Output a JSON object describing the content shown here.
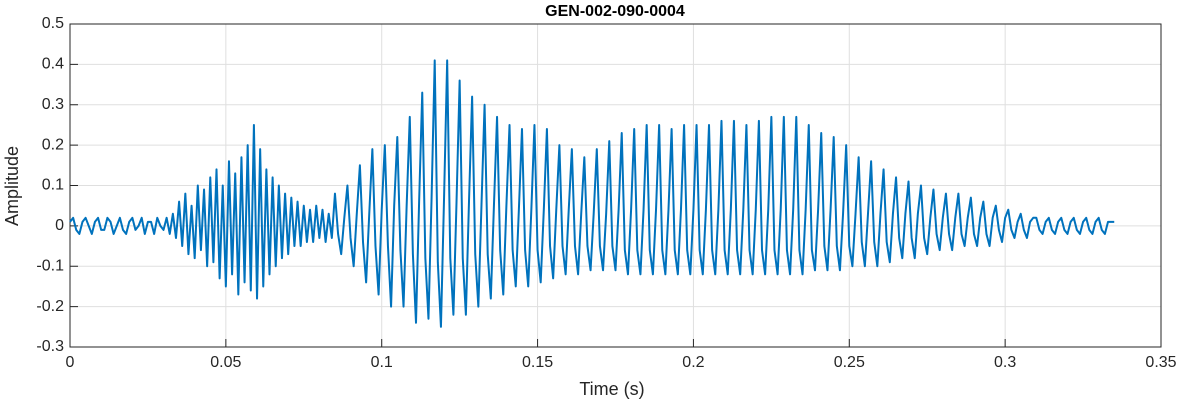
{
  "chart_data": {
    "type": "line",
    "title": "GEN-002-090-0004",
    "xlabel": "Time (s)",
    "ylabel": "Amplitude",
    "color": "#0072bd",
    "grid": true,
    "xlim": [
      0,
      0.35
    ],
    "ylim": [
      -0.3,
      0.5
    ],
    "xticks": [
      0,
      0.05,
      0.1,
      0.15,
      0.2,
      0.25,
      0.3,
      0.35
    ],
    "yticks": [
      -0.3,
      -0.2,
      -0.1,
      0,
      0.1,
      0.2,
      0.3,
      0.4,
      0.5
    ],
    "x": [
      0,
      0.001,
      0.002,
      0.003,
      0.004,
      0.005,
      0.006,
      0.007,
      0.008,
      0.009,
      0.01,
      0.011,
      0.012,
      0.013,
      0.014,
      0.015,
      0.016,
      0.017,
      0.018,
      0.019,
      0.02,
      0.021,
      0.022,
      0.023,
      0.024,
      0.025,
      0.026,
      0.027,
      0.028,
      0.029,
      0.03,
      0.031,
      0.032,
      0.033,
      0.034,
      0.035,
      0.036,
      0.037,
      0.038,
      0.039,
      0.04,
      0.041,
      0.042,
      0.043,
      0.044,
      0.045,
      0.046,
      0.047,
      0.048,
      0.049,
      0.05,
      0.051,
      0.052,
      0.053,
      0.054,
      0.055,
      0.056,
      0.057,
      0.058,
      0.059,
      0.06,
      0.061,
      0.062,
      0.063,
      0.064,
      0.065,
      0.066,
      0.067,
      0.068,
      0.069,
      0.07,
      0.071,
      0.072,
      0.073,
      0.074,
      0.075,
      0.076,
      0.077,
      0.078,
      0.079,
      0.08,
      0.081,
      0.082,
      0.083,
      0.084,
      0.085,
      0.086,
      0.087,
      0.088,
      0.089,
      0.09,
      0.091,
      0.092,
      0.093,
      0.094,
      0.095,
      0.096,
      0.097,
      0.098,
      0.099,
      0.1,
      0.101,
      0.102,
      0.103,
      0.104,
      0.105,
      0.106,
      0.107,
      0.108,
      0.109,
      0.11,
      0.111,
      0.112,
      0.113,
      0.114,
      0.115,
      0.116,
      0.117,
      0.118,
      0.119,
      0.12,
      0.121,
      0.122,
      0.123,
      0.124,
      0.125,
      0.126,
      0.127,
      0.128,
      0.129,
      0.13,
      0.131,
      0.132,
      0.133,
      0.134,
      0.135,
      0.136,
      0.137,
      0.138,
      0.139,
      0.14,
      0.141,
      0.142,
      0.143,
      0.144,
      0.145,
      0.146,
      0.147,
      0.148,
      0.149,
      0.15,
      0.151,
      0.152,
      0.153,
      0.154,
      0.155,
      0.156,
      0.157,
      0.158,
      0.159,
      0.16,
      0.161,
      0.162,
      0.163,
      0.164,
      0.165,
      0.166,
      0.167,
      0.168,
      0.169,
      0.17,
      0.171,
      0.172,
      0.173,
      0.174,
      0.175,
      0.176,
      0.177,
      0.178,
      0.179,
      0.18,
      0.181,
      0.182,
      0.183,
      0.184,
      0.185,
      0.186,
      0.187,
      0.188,
      0.189,
      0.19,
      0.191,
      0.192,
      0.193,
      0.194,
      0.195,
      0.196,
      0.197,
      0.198,
      0.199,
      0.2,
      0.201,
      0.202,
      0.203,
      0.204,
      0.205,
      0.206,
      0.207,
      0.208,
      0.209,
      0.21,
      0.211,
      0.212,
      0.213,
      0.214,
      0.215,
      0.216,
      0.217,
      0.218,
      0.219,
      0.22,
      0.221,
      0.222,
      0.223,
      0.224,
      0.225,
      0.226,
      0.227,
      0.228,
      0.229,
      0.23,
      0.231,
      0.232,
      0.233,
      0.234,
      0.235,
      0.236,
      0.237,
      0.238,
      0.239,
      0.24,
      0.241,
      0.242,
      0.243,
      0.244,
      0.245,
      0.246,
      0.247,
      0.248,
      0.249,
      0.25,
      0.251,
      0.252,
      0.253,
      0.254,
      0.255,
      0.256,
      0.257,
      0.258,
      0.259,
      0.26,
      0.261,
      0.262,
      0.263,
      0.264,
      0.265,
      0.266,
      0.267,
      0.268,
      0.269,
      0.27,
      0.271,
      0.272,
      0.273,
      0.274,
      0.275,
      0.276,
      0.277,
      0.278,
      0.279,
      0.28,
      0.281,
      0.282,
      0.283,
      0.284,
      0.285,
      0.286,
      0.287,
      0.288,
      0.289,
      0.29,
      0.291,
      0.292,
      0.293,
      0.294,
      0.295,
      0.296,
      0.297,
      0.298,
      0.299,
      0.3,
      0.301,
      0.302,
      0.303,
      0.304,
      0.305,
      0.306,
      0.307,
      0.308,
      0.309,
      0.31,
      0.311,
      0.312,
      0.313,
      0.314,
      0.315,
      0.316,
      0.317,
      0.318,
      0.319,
      0.32,
      0.321,
      0.322,
      0.323,
      0.324,
      0.325,
      0.326,
      0.327,
      0.328,
      0.329,
      0.33,
      0.331,
      0.332,
      0.333,
      0.334,
      0.335
    ],
    "values": [
      0.01,
      0.02,
      -0.01,
      -0.02,
      0.01,
      0.02,
      0.0,
      -0.02,
      0.01,
      0.02,
      -0.01,
      -0.01,
      0.02,
      0.01,
      -0.02,
      0.0,
      0.02,
      -0.01,
      -0.02,
      0.01,
      0.02,
      -0.01,
      0.0,
      0.02,
      -0.02,
      0.01,
      0.01,
      -0.02,
      0.02,
      0.0,
      -0.01,
      0.02,
      -0.02,
      0.03,
      -0.03,
      0.06,
      -0.05,
      0.08,
      -0.07,
      0.05,
      -0.08,
      0.1,
      -0.06,
      0.09,
      -0.1,
      0.12,
      -0.09,
      0.14,
      -0.13,
      0.1,
      -0.15,
      0.16,
      -0.12,
      0.13,
      -0.17,
      0.17,
      -0.14,
      0.2,
      -0.16,
      0.25,
      -0.18,
      0.19,
      -0.15,
      0.14,
      -0.12,
      0.12,
      -0.1,
      0.1,
      -0.08,
      0.08,
      -0.07,
      0.07,
      -0.05,
      0.06,
      -0.05,
      0.05,
      -0.04,
      0.04,
      -0.04,
      0.05,
      -0.03,
      0.04,
      -0.04,
      0.03,
      -0.03,
      0.08,
      -0.02,
      -0.07,
      0.02,
      0.1,
      -0.03,
      -0.1,
      0.03,
      0.15,
      -0.04,
      -0.14,
      0.03,
      0.19,
      -0.05,
      -0.17,
      0.04,
      0.2,
      -0.05,
      -0.2,
      0.05,
      0.22,
      -0.06,
      -0.2,
      0.05,
      0.27,
      -0.07,
      -0.24,
      0.06,
      0.33,
      -0.08,
      -0.23,
      0.07,
      0.41,
      -0.09,
      -0.25,
      0.07,
      0.41,
      -0.08,
      -0.22,
      0.06,
      0.36,
      -0.08,
      -0.22,
      0.06,
      0.32,
      -0.07,
      -0.2,
      0.05,
      0.3,
      -0.07,
      -0.18,
      0.05,
      0.27,
      -0.06,
      -0.17,
      0.05,
      0.25,
      -0.06,
      -0.15,
      0.04,
      0.24,
      -0.06,
      -0.15,
      0.04,
      0.25,
      -0.06,
      -0.14,
      0.04,
      0.24,
      -0.05,
      -0.13,
      0.04,
      0.2,
      -0.05,
      -0.12,
      0.04,
      0.19,
      -0.05,
      -0.12,
      0.03,
      0.17,
      -0.05,
      -0.11,
      0.03,
      0.19,
      -0.05,
      -0.11,
      0.03,
      0.21,
      -0.05,
      -0.11,
      0.04,
      0.23,
      -0.06,
      -0.12,
      0.04,
      0.24,
      -0.06,
      -0.12,
      0.04,
      0.25,
      -0.06,
      -0.12,
      0.04,
      0.25,
      -0.06,
      -0.12,
      0.04,
      0.24,
      -0.06,
      -0.12,
      0.04,
      0.25,
      -0.06,
      -0.12,
      0.04,
      0.25,
      -0.06,
      -0.12,
      0.04,
      0.25,
      -0.06,
      -0.12,
      0.04,
      0.26,
      -0.06,
      -0.12,
      0.04,
      0.26,
      -0.06,
      -0.12,
      0.04,
      0.25,
      -0.06,
      -0.12,
      0.04,
      0.26,
      -0.06,
      -0.12,
      0.04,
      0.27,
      -0.06,
      -0.12,
      0.04,
      0.27,
      -0.06,
      -0.12,
      0.04,
      0.27,
      -0.06,
      -0.12,
      0.04,
      0.25,
      -0.06,
      -0.11,
      0.04,
      0.23,
      -0.05,
      -0.11,
      0.04,
      0.22,
      -0.05,
      -0.11,
      0.03,
      0.2,
      -0.05,
      -0.1,
      0.03,
      0.17,
      -0.04,
      -0.1,
      0.03,
      0.16,
      -0.04,
      -0.1,
      0.03,
      0.14,
      -0.04,
      -0.09,
      0.03,
      0.12,
      -0.03,
      -0.08,
      0.03,
      0.11,
      -0.03,
      -0.08,
      0.03,
      0.1,
      -0.03,
      -0.07,
      0.02,
      0.09,
      -0.02,
      -0.06,
      0.02,
      0.08,
      -0.02,
      -0.06,
      0.02,
      0.08,
      -0.02,
      -0.05,
      0.02,
      0.07,
      -0.02,
      -0.05,
      0.02,
      0.06,
      -0.02,
      -0.05,
      0.02,
      0.05,
      -0.01,
      -0.04,
      0.02,
      0.04,
      -0.01,
      -0.03,
      0.01,
      0.03,
      -0.01,
      -0.03,
      0.01,
      0.02,
      0.02,
      -0.01,
      -0.02,
      0.01,
      0.02,
      -0.01,
      -0.02,
      0.01,
      0.02,
      -0.01,
      -0.02,
      0.01,
      0.02,
      -0.01,
      -0.02,
      0.01,
      0.02,
      -0.01,
      -0.02,
      0.01,
      0.02,
      -0.01,
      -0.02,
      0.01,
      0.01,
      0.01
    ]
  }
}
